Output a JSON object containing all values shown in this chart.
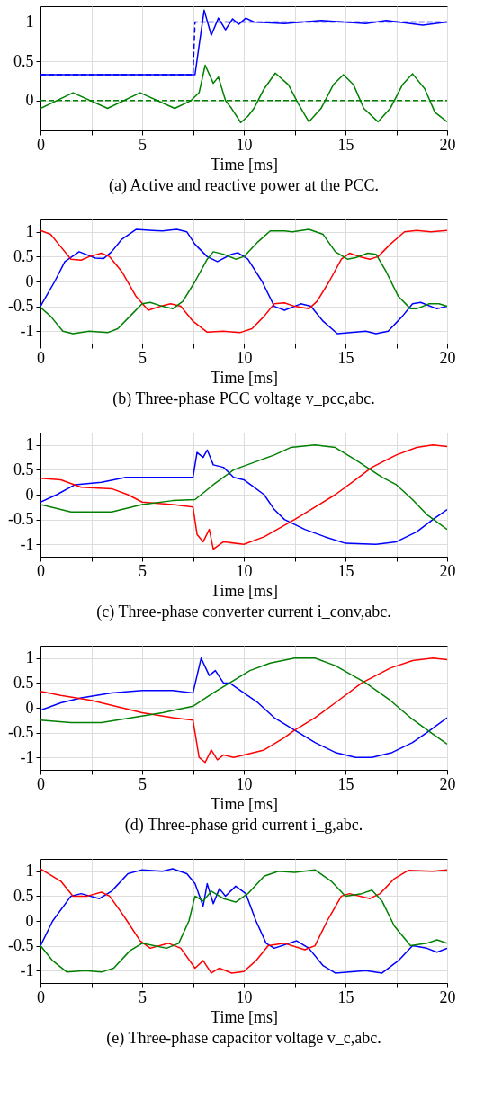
{
  "chart_data": [
    {
      "type": "line",
      "title": "(a)  Active and reactive power at the PCC.",
      "xlabel": "Time [ms]",
      "xlim": [
        0,
        20
      ],
      "ylim": [
        -0.38,
        1.2
      ],
      "xticks": [
        0,
        {
          "value": 2.5,
          "label": null
        },
        5,
        {
          "value": 7.5,
          "label": null
        },
        10,
        {
          "value": 12.5,
          "label": null
        },
        15,
        {
          "value": 17.5,
          "label": null
        },
        20
      ],
      "yticks": [
        0,
        0.5,
        1
      ],
      "grid": true,
      "legend": false,
      "series": [
        {
          "color": "#0000ff",
          "line_style": "solid",
          "x": [
            0,
            7.6,
            7.8,
            8.05,
            8.4,
            8.75,
            9.1,
            9.45,
            9.75,
            10.1,
            10.5,
            12,
            13.8,
            16,
            17,
            18.8,
            20
          ],
          "values": [
            0.33,
            0.33,
            0.7,
            1.15,
            0.83,
            1.05,
            0.9,
            1.04,
            0.97,
            1.05,
            1.0,
            0.98,
            1.02,
            0.98,
            1.02,
            0.96,
            1.0
          ]
        },
        {
          "color": "#0000ff",
          "line_style": "dashed",
          "x": [
            0,
            7.5,
            7.6,
            20
          ],
          "values": [
            0.33,
            0.33,
            1,
            1
          ]
        },
        {
          "color": "#008000",
          "line_style": "solid",
          "x": [
            0,
            1.6,
            3.3,
            4.9,
            6.6,
            7.4,
            7.8,
            8.1,
            8.5,
            8.75,
            9.1,
            9.4,
            9.85,
            10.2,
            10.5,
            11,
            11.55,
            12.2,
            12.7,
            13.2,
            13.8,
            14.4,
            14.9,
            15.4,
            15.9,
            16.6,
            17.2,
            17.8,
            18.3,
            18.9,
            19.4,
            20
          ],
          "values": [
            -0.1,
            0.1,
            -0.1,
            0.1,
            -0.1,
            0,
            0.1,
            0.45,
            0.22,
            0.3,
            0,
            -0.1,
            -0.28,
            -0.2,
            -0.1,
            0.15,
            0.35,
            0.2,
            -0.05,
            -0.27,
            -0.1,
            0.2,
            0.33,
            0.2,
            -0.1,
            -0.27,
            -0.1,
            0.2,
            0.34,
            0.15,
            -0.15,
            -0.27
          ]
        },
        {
          "color": "#008000",
          "line_style": "dashed",
          "x": [
            0,
            20
          ],
          "values": [
            0,
            0
          ]
        }
      ]
    },
    {
      "type": "line",
      "title": "(b)  Three-phase PCC voltage v_pcc,abc.",
      "xlabel": "Time [ms]",
      "xlim": [
        0,
        20
      ],
      "ylim": [
        -1.25,
        1.25
      ],
      "xticks": [
        0,
        {
          "value": 2.5,
          "label": null
        },
        5,
        {
          "value": 7.5,
          "label": null
        },
        10,
        {
          "value": 12.5,
          "label": null
        },
        15,
        {
          "value": 17.5,
          "label": null
        },
        20
      ],
      "yticks": [
        -1,
        -0.5,
        0,
        0.5,
        1
      ],
      "grid": true,
      "legend": false,
      "series": [
        {
          "color": "#0000ff",
          "line_style": "solid",
          "x": [
            0,
            0.7,
            1.2,
            1.9,
            2.7,
            3.1,
            3.5,
            4.0,
            4.7,
            5.5,
            6,
            6.7,
            7.2,
            7.6,
            8.2,
            8.7,
            9.4,
            9.7,
            10.2,
            10.9,
            11.5,
            12,
            12.5,
            12.8,
            13.3,
            13.9,
            14.6,
            15.5,
            16,
            16.5,
            17.1,
            17.8,
            18.3,
            18.7,
            19.5,
            20
          ],
          "values": [
            -0.5,
            0,
            0.4,
            0.6,
            0.47,
            0.46,
            0.6,
            0.85,
            1.05,
            1.03,
            1.02,
            1.05,
            1.0,
            0.75,
            0.5,
            0.4,
            0.55,
            0.58,
            0.45,
            0,
            -0.5,
            -0.58,
            -0.5,
            -0.45,
            -0.5,
            -0.8,
            -1.05,
            -1.02,
            -1.0,
            -1.05,
            -1.0,
            -0.7,
            -0.45,
            -0.42,
            -0.55,
            -0.5
          ]
        },
        {
          "color": "#ff0000",
          "line_style": "solid",
          "x": [
            0,
            0.5,
            1.0,
            1.5,
            2.0,
            2.4,
            3.0,
            3.4,
            4.0,
            4.7,
            5.3,
            5.9,
            6.4,
            6.9,
            7.5,
            8.2,
            9.0,
            9.8,
            10.4,
            11,
            11.5,
            12,
            12.5,
            13.2,
            13.6,
            14.2,
            14.8,
            15.2,
            15.7,
            16.2,
            16.6,
            17.2,
            17.9,
            18.5,
            19.2,
            20
          ],
          "values": [
            1.03,
            0.95,
            0.7,
            0.45,
            0.43,
            0.5,
            0.57,
            0.5,
            0.2,
            -0.3,
            -0.58,
            -0.5,
            -0.45,
            -0.5,
            -0.8,
            -1.02,
            -1.0,
            -1.03,
            -0.95,
            -0.7,
            -0.45,
            -0.43,
            -0.5,
            -0.55,
            -0.4,
            0,
            0.45,
            0.57,
            0.5,
            0.45,
            0.5,
            0.75,
            1.0,
            1.03,
            1.0,
            1.03
          ]
        },
        {
          "color": "#008000",
          "line_style": "solid",
          "x": [
            0,
            0.5,
            1.1,
            1.6,
            2.4,
            3.3,
            3.8,
            4.4,
            5,
            5.4,
            6.0,
            6.5,
            7,
            7.6,
            8.2,
            8.5,
            9,
            9.6,
            10,
            10.7,
            11.3,
            12,
            12.4,
            13.2,
            13.9,
            14.5,
            15.1,
            15.5,
            16.1,
            16.5,
            17,
            17.6,
            18.2,
            18.5,
            19.1,
            19.6,
            20
          ],
          "values": [
            -0.52,
            -0.7,
            -1.0,
            -1.05,
            -1.0,
            -1.03,
            -0.95,
            -0.7,
            -0.45,
            -0.42,
            -0.5,
            -0.55,
            -0.4,
            0,
            0.45,
            0.6,
            0.55,
            0.45,
            0.5,
            0.8,
            1.02,
            1.02,
            1.0,
            1.05,
            0.95,
            0.6,
            0.45,
            0.48,
            0.57,
            0.55,
            0.2,
            -0.3,
            -0.55,
            -0.55,
            -0.45,
            -0.45,
            -0.5
          ]
        }
      ]
    },
    {
      "type": "line",
      "title": "(c)  Three-phase converter current i_conv,abc.",
      "xlabel": "Time [ms]",
      "xlim": [
        0,
        20
      ],
      "ylim": [
        -1.25,
        1.25
      ],
      "xticks": [
        0,
        {
          "value": 2.5,
          "label": null
        },
        5,
        {
          "value": 7.5,
          "label": null
        },
        10,
        {
          "value": 12.5,
          "label": null
        },
        15,
        {
          "value": 17.5,
          "label": null
        },
        20
      ],
      "yticks": [
        -1,
        -0.5,
        0,
        0.5,
        1
      ],
      "grid": true,
      "legend": false,
      "series": [
        {
          "color": "#0000ff",
          "line_style": "solid",
          "x": [
            0,
            0.8,
            1.7,
            3,
            4.2,
            5.5,
            7.5,
            7.7,
            8.0,
            8.2,
            8.5,
            9.0,
            9.5,
            10,
            10.5,
            11,
            11.5,
            12,
            13,
            14,
            15,
            16.5,
            17.5,
            18.5,
            19.3,
            20
          ],
          "values": [
            -0.15,
            0,
            0.2,
            0.25,
            0.35,
            0.35,
            0.35,
            0.85,
            0.75,
            0.9,
            0.6,
            0.55,
            0.35,
            0.3,
            0.15,
            0,
            -0.3,
            -0.5,
            -0.7,
            -0.85,
            -0.98,
            -1.0,
            -0.95,
            -0.75,
            -0.5,
            -0.3
          ]
        },
        {
          "color": "#ff0000",
          "line_style": "solid",
          "x": [
            0,
            1,
            2,
            3.5,
            4.3,
            5,
            6.5,
            7.5,
            7.7,
            8.0,
            8.3,
            8.5,
            9,
            10,
            11,
            12.5,
            13.5,
            14.5,
            15.5,
            16.3,
            17.5,
            18.5,
            19.3,
            20
          ],
          "values": [
            0.33,
            0.3,
            0.15,
            0.12,
            0,
            -0.15,
            -0.2,
            -0.25,
            -0.8,
            -0.95,
            -0.7,
            -1.1,
            -0.95,
            -1.0,
            -0.85,
            -0.5,
            -0.25,
            0,
            0.3,
            0.55,
            0.8,
            0.95,
            1.0,
            0.97
          ]
        },
        {
          "color": "#008000",
          "line_style": "solid",
          "x": [
            0,
            1.5,
            3.5,
            5,
            6.5,
            7.6,
            8.5,
            9.5,
            10.5,
            11.5,
            12.3,
            13.5,
            14.5,
            15.5,
            16.8,
            17.5,
            18.3,
            19,
            20
          ],
          "values": [
            -0.2,
            -0.35,
            -0.35,
            -0.2,
            -0.12,
            -0.1,
            0.2,
            0.5,
            0.65,
            0.8,
            0.95,
            1.0,
            0.95,
            0.7,
            0.35,
            0.2,
            -0.1,
            -0.4,
            -0.7
          ]
        }
      ]
    },
    {
      "type": "line",
      "title": "(d)  Three-phase grid current i_g,abc.",
      "xlabel": "Time [ms]",
      "xlim": [
        0,
        20
      ],
      "ylim": [
        -1.25,
        1.25
      ],
      "xticks": [
        0,
        {
          "value": 2.5,
          "label": null
        },
        5,
        {
          "value": 7.5,
          "label": null
        },
        10,
        {
          "value": 12.5,
          "label": null
        },
        15,
        {
          "value": 17.5,
          "label": null
        },
        20
      ],
      "yticks": [
        -1,
        -0.5,
        0,
        0.5,
        1
      ],
      "grid": true,
      "legend": false,
      "series": [
        {
          "color": "#0000ff",
          "line_style": "solid",
          "x": [
            0,
            1,
            2,
            3.5,
            5,
            6.5,
            7.5,
            7.9,
            8.3,
            8.6,
            9,
            9.3,
            10,
            10.7,
            11.5,
            12.5,
            13.5,
            14.5,
            15.5,
            16.3,
            17.3,
            18.3,
            19,
            20
          ],
          "values": [
            -0.05,
            0.1,
            0.2,
            0.3,
            0.35,
            0.35,
            0.3,
            1.0,
            0.65,
            0.75,
            0.5,
            0.5,
            0.3,
            0.1,
            -0.2,
            -0.45,
            -0.7,
            -0.9,
            -1.0,
            -1.0,
            -0.9,
            -0.7,
            -0.5,
            -0.2
          ]
        },
        {
          "color": "#ff0000",
          "line_style": "solid",
          "x": [
            0,
            1,
            2.5,
            3.5,
            5,
            6.5,
            7.5,
            7.8,
            8.1,
            8.4,
            8.7,
            9.0,
            9.5,
            10,
            11,
            12,
            12.5,
            13.5,
            14.5,
            15.8,
            17.2,
            18.3,
            19.3,
            20
          ],
          "values": [
            0.33,
            0.25,
            0.15,
            0.05,
            -0.1,
            -0.2,
            -0.25,
            -1.0,
            -1.1,
            -0.85,
            -1.05,
            -0.95,
            -1.0,
            -0.95,
            -0.85,
            -0.6,
            -0.45,
            -0.2,
            0.1,
            0.5,
            0.8,
            0.95,
            1.0,
            0.97
          ]
        },
        {
          "color": "#008000",
          "line_style": "solid",
          "x": [
            0,
            1.5,
            3,
            4.5,
            6,
            7.5,
            8.5,
            9.3,
            10.3,
            11.3,
            12.5,
            13.5,
            14.5,
            16,
            17.2,
            18.2,
            19.2,
            20
          ],
          "values": [
            -0.25,
            -0.3,
            -0.3,
            -0.2,
            -0.1,
            0.03,
            0.3,
            0.5,
            0.75,
            0.9,
            1.0,
            1.0,
            0.85,
            0.5,
            0.15,
            -0.2,
            -0.5,
            -0.73
          ]
        }
      ]
    },
    {
      "type": "line",
      "title": "(e)  Three-phase capacitor voltage v_c,abc.",
      "xlabel": "Time [ms]",
      "xlim": [
        0,
        20
      ],
      "ylim": [
        -1.25,
        1.25
      ],
      "xticks": [
        0,
        {
          "value": 2.5,
          "label": null
        },
        5,
        {
          "value": 7.5,
          "label": null
        },
        10,
        {
          "value": 12.5,
          "label": null
        },
        15,
        {
          "value": 17.5,
          "label": null
        },
        20
      ],
      "yticks": [
        -1,
        -0.5,
        0,
        0.5,
        1
      ],
      "grid": true,
      "legend": false,
      "series": [
        {
          "color": "#0000ff",
          "line_style": "solid",
          "x": [
            0,
            0.6,
            1.5,
            2.0,
            2.9,
            3.5,
            4.3,
            5,
            6,
            6.5,
            7.2,
            7.6,
            8.0,
            8.2,
            8.5,
            8.8,
            9.1,
            9.6,
            10.1,
            10.6,
            11.1,
            11.5,
            12.6,
            13.2,
            13.9,
            14.5,
            16,
            16.8,
            17.6,
            18.3,
            19,
            19.5,
            20
          ],
          "values": [
            -0.5,
            0,
            0.5,
            0.55,
            0.45,
            0.6,
            0.95,
            1.03,
            1.0,
            1.05,
            0.95,
            0.75,
            0.3,
            0.75,
            0.35,
            0.65,
            0.5,
            0.7,
            0.55,
            0,
            -0.45,
            -0.55,
            -0.4,
            -0.55,
            -0.9,
            -1.05,
            -1.0,
            -1.05,
            -0.8,
            -0.5,
            -0.55,
            -0.63,
            -0.55
          ]
        },
        {
          "color": "#ff0000",
          "line_style": "solid",
          "x": [
            0,
            1.0,
            1.6,
            2.3,
            3.0,
            3.4,
            4.1,
            4.9,
            5.4,
            6.3,
            6.9,
            7.6,
            8.0,
            8.4,
            8.8,
            9.4,
            10,
            10.6,
            11.2,
            12,
            13,
            13.5,
            14.1,
            14.8,
            15.2,
            16.2,
            16.7,
            17.4,
            18.1,
            19.3,
            20
          ],
          "values": [
            1.05,
            0.8,
            0.5,
            0.5,
            0.58,
            0.5,
            0.1,
            -0.4,
            -0.55,
            -0.45,
            -0.55,
            -0.95,
            -0.8,
            -1.05,
            -0.95,
            -1.05,
            -1.02,
            -0.8,
            -0.5,
            -0.45,
            -0.58,
            -0.5,
            0,
            0.5,
            0.55,
            0.45,
            0.55,
            0.85,
            1.02,
            1.0,
            1.03
          ]
        },
        {
          "color": "#008000",
          "line_style": "solid",
          "x": [
            0,
            0.6,
            1.3,
            2.2,
            3.0,
            3.6,
            4.4,
            5.0,
            6.2,
            6.8,
            7.3,
            7.6,
            8.0,
            8.4,
            9.0,
            9.6,
            10.2,
            11,
            11.7,
            12.5,
            13.5,
            14.3,
            15.0,
            15.8,
            16.3,
            16.8,
            17.4,
            18.2,
            19.0,
            19.5,
            20
          ],
          "values": [
            -0.5,
            -0.8,
            -1.03,
            -1.0,
            -1.03,
            -0.95,
            -0.6,
            -0.45,
            -0.55,
            -0.45,
            0,
            0.5,
            0.4,
            0.6,
            0.45,
            0.38,
            0.55,
            0.9,
            1.0,
            0.98,
            1.03,
            0.8,
            0.5,
            0.55,
            0.62,
            0.4,
            -0.1,
            -0.5,
            -0.45,
            -0.38,
            -0.45
          ]
        }
      ]
    }
  ]
}
